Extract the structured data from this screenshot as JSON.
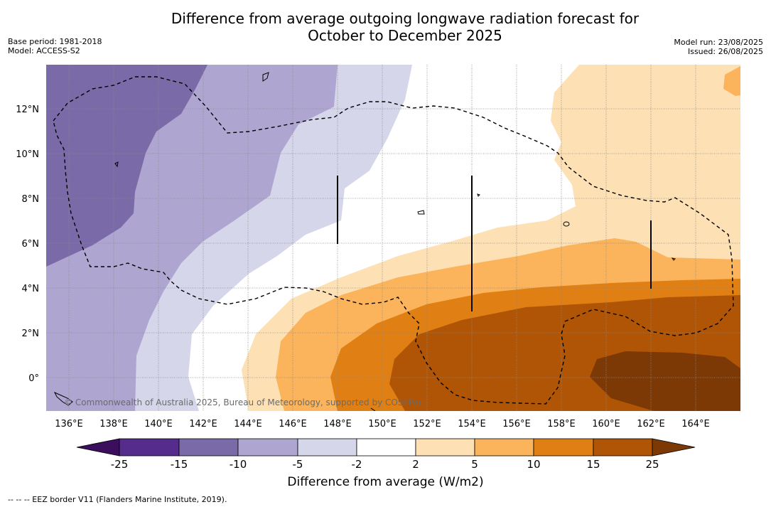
{
  "title_line1": "Difference from average outgoing longwave radiation forecast for",
  "title_line2": "October to December 2025",
  "base_period": "Base period: 1981-2018",
  "model": "Model: ACCESS-S2",
  "model_run": "Model run: 23/08/2025",
  "issued": "Issued: 26/08/2025",
  "copyright": "© Commonwealth of Australia 2025, Bureau of Meteorology, supported by COSPPac",
  "x_ticks": [
    "136°E",
    "138°E",
    "140°E",
    "142°E",
    "144°E",
    "146°E",
    "148°E",
    "150°E",
    "152°E",
    "154°E",
    "156°E",
    "158°E",
    "160°E",
    "162°E",
    "164°E"
  ],
  "y_ticks": [
    "12°N",
    "10°N",
    "8°N",
    "6°N",
    "4°N",
    "2°N",
    "0°"
  ],
  "colorbar": {
    "title": "Difference from average (W/m2)",
    "labels": [
      "-25",
      "-15",
      "-10",
      "-5",
      "-2",
      "2",
      "5",
      "10",
      "15",
      "25"
    ],
    "colors": [
      "#3b0f5e",
      "#552b8c",
      "#7b6aa8",
      "#aea6d0",
      "#d6d6ea",
      "#ffffff",
      "#fde1b4",
      "#fbb45b",
      "#df7f14",
      "#b05405",
      "#7c3905"
    ]
  },
  "footer": "--  --  -- EEZ border V11 (Flanders Marine Institute, 2019)."
}
